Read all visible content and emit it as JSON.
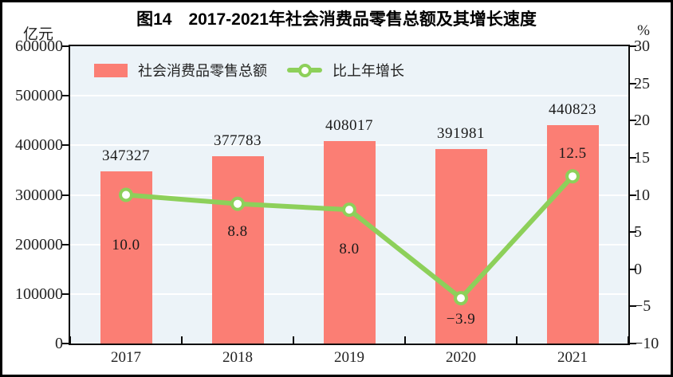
{
  "figure": {
    "title": "图14　2017-2021年社会消费品零售总额及其增长速度",
    "left_axis_unit": "亿元",
    "right_axis_unit": "%"
  },
  "legend": {
    "items": [
      {
        "label": "社会消费品零售总额",
        "swatch": "bar-swatch",
        "color": "#FB7E74"
      },
      {
        "label": "比上年增长",
        "swatch": "line-swatch",
        "color": "#8DD05A"
      }
    ]
  },
  "colors": {
    "bar": "#FB7E74",
    "line": "#8DD05A",
    "marker_fill": "#FFFFFF",
    "plot_bg": "#ECF3F8",
    "grid": "#FFFFFF",
    "axis": "#0A0A0A"
  },
  "chart_data": {
    "type": "combo-bar-line",
    "title": "图14　2017-2021年社会消费品零售总额及其增长速度",
    "categories": [
      "2017",
      "2018",
      "2019",
      "2020",
      "2021"
    ],
    "series": [
      {
        "name": "社会消费品零售总额",
        "type": "bar",
        "axis": "left",
        "unit": "亿元",
        "values": [
          347327,
          377783,
          408017,
          391981,
          440823
        ],
        "color": "#FB7E74"
      },
      {
        "name": "比上年增长",
        "type": "line",
        "axis": "right",
        "unit": "%",
        "values": [
          10.0,
          8.8,
          8.0,
          -3.9,
          12.5
        ],
        "labels": [
          "10.0",
          "8.8",
          "8.0",
          "−3.9",
          "12.5"
        ],
        "color": "#8DD05A",
        "marker": "white-circle-green-ring",
        "label_dy": [
          63,
          35,
          50,
          27,
          -28
        ]
      }
    ],
    "left_axis": {
      "unit": "亿元",
      "min": 0,
      "max": 600000,
      "tick_step": 100000,
      "tick_labels": [
        "600000",
        "500000",
        "400000",
        "300000",
        "200000",
        "100000",
        "0"
      ]
    },
    "right_axis": {
      "unit": "%",
      "min": -10,
      "max": 30,
      "tick_step": 5,
      "tick_labels": [
        "30",
        "25",
        "20",
        "15",
        "10",
        "5",
        "0",
        "−5",
        "−10"
      ]
    },
    "grid": "horizontal white gridlines at left-axis 100000 steps",
    "legend_position": "top-left inside plot area",
    "xlabel": "",
    "ylabel_left": "亿元",
    "ylabel_right": "%"
  }
}
